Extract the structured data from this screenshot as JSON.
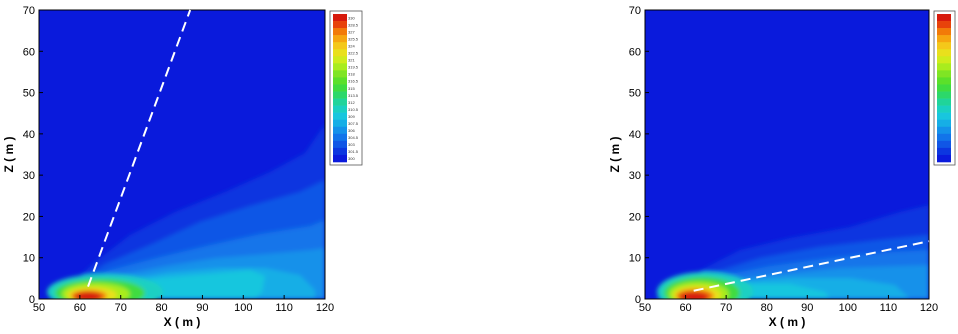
{
  "chart_data": [
    {
      "type": "heatmap",
      "xlabel": "X ( m )",
      "ylabel": "Z ( m )",
      "xlim": [
        50,
        120
      ],
      "ylim": [
        0,
        70
      ],
      "x_ticks": [
        "50",
        "60",
        "70",
        "80",
        "90",
        "100",
        "110",
        "120"
      ],
      "y_ticks": [
        "0",
        "10",
        "20",
        "30",
        "40",
        "50",
        "60",
        "70"
      ],
      "legend_levels": [
        "330",
        "328.5",
        "327",
        "325.5",
        "324",
        "322.5",
        "321",
        "319.5",
        "318",
        "316.5",
        "315",
        "313.5",
        "312",
        "310.5",
        "309",
        "307.5",
        "306",
        "304.5",
        "303",
        "301.5",
        "300"
      ],
      "legend_colors": [
        "#d71a0c",
        "#e8420a",
        "#f27a08",
        "#f6a610",
        "#f4c81a",
        "#e9e01c",
        "#cfec1c",
        "#a9ec1e",
        "#7fe524",
        "#5be02a",
        "#3fdc40",
        "#2cd86a",
        "#20d49a",
        "#1ad0c2",
        "#18c6de",
        "#16aee6",
        "#1491ea",
        "#1274ea",
        "#1056e6",
        "#0c36e0",
        "#0a1adc"
      ],
      "dashed_line": {
        "from": [
          62,
          3
        ],
        "to": [
          87,
          70
        ]
      }
    },
    {
      "type": "heatmap",
      "xlabel": "X ( m )",
      "ylabel": "Z ( m )",
      "xlim": [
        50,
        120
      ],
      "ylim": [
        0,
        70
      ],
      "x_ticks": [
        "50",
        "60",
        "70",
        "80",
        "90",
        "100",
        "110",
        "120"
      ],
      "y_ticks": [
        "0",
        "10",
        "20",
        "30",
        "40",
        "50",
        "60",
        "70"
      ],
      "legend_colors": [
        "#d71a0c",
        "#e8420a",
        "#f27a08",
        "#f6a610",
        "#f4c81a",
        "#e9e01c",
        "#cfec1c",
        "#a9ec1e",
        "#7fe524",
        "#5be02a",
        "#3fdc40",
        "#2cd86a",
        "#20d49a",
        "#1ad0c2",
        "#18c6de",
        "#16aee6",
        "#1491ea",
        "#1274ea",
        "#1056e6",
        "#0c36e0",
        "#0a1adc"
      ],
      "dashed_line": {
        "from": [
          62,
          2
        ],
        "to": [
          120,
          14
        ]
      }
    }
  ]
}
